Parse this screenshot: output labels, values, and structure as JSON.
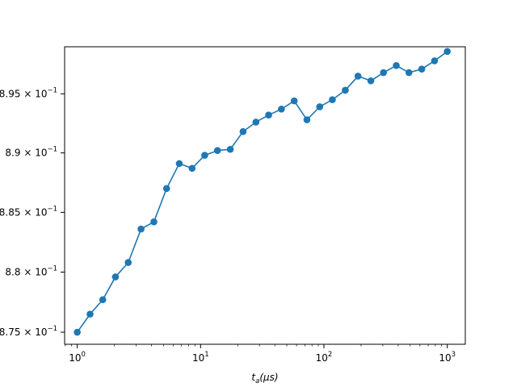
{
  "chart_data": {
    "type": "line",
    "xscale": "log",
    "yscale": "log",
    "xlabel": "t_a(μs)",
    "ylabel": "",
    "title": "",
    "xlim": [
      0.79,
      1400
    ],
    "ylim": [
      0.874,
      0.899
    ],
    "grid": false,
    "series_color": "#1f77b4",
    "x_ticks": [
      {
        "value": 1,
        "label_base": "10",
        "label_exp": "0"
      },
      {
        "value": 10,
        "label_base": "10",
        "label_exp": "1"
      },
      {
        "value": 100,
        "label_base": "10",
        "label_exp": "2"
      },
      {
        "value": 1000,
        "label_base": "10",
        "label_exp": "3"
      }
    ],
    "y_ticks": [
      {
        "value": 0.875,
        "label_mant": "8.75",
        "label_base": " × 10",
        "label_exp": "−1"
      },
      {
        "value": 0.88,
        "label_mant": "8.8",
        "label_base": " × 10",
        "label_exp": "−1"
      },
      {
        "value": 0.885,
        "label_mant": "8.85",
        "label_base": " × 10",
        "label_exp": "−1"
      },
      {
        "value": 0.89,
        "label_mant": "8.9",
        "label_base": " × 10",
        "label_exp": "−1"
      },
      {
        "value": 0.895,
        "label_mant": "8.95",
        "label_base": " × 10",
        "label_exp": "−1"
      }
    ],
    "series": [
      {
        "x": [
          1.0,
          1.27,
          1.61,
          2.04,
          2.59,
          3.29,
          4.18,
          5.3,
          6.72,
          8.53,
          10.8,
          13.7,
          17.4,
          22.1,
          28.1,
          35.6,
          45.2,
          57.4,
          72.8,
          92.4,
          117,
          149,
          189,
          240,
          304,
          386,
          489,
          621,
          788,
          1000
        ],
        "y": [
          0.875,
          0.8765,
          0.8777,
          0.8796,
          0.8808,
          0.8836,
          0.8842,
          0.887,
          0.8891,
          0.8887,
          0.8898,
          0.8902,
          0.8903,
          0.8918,
          0.8926,
          0.8932,
          0.8937,
          0.8944,
          0.8928,
          0.8939,
          0.8945,
          0.8953,
          0.8965,
          0.8961,
          0.8968,
          0.8974,
          0.8968,
          0.8971,
          0.8978,
          0.8986
        ]
      }
    ]
  }
}
